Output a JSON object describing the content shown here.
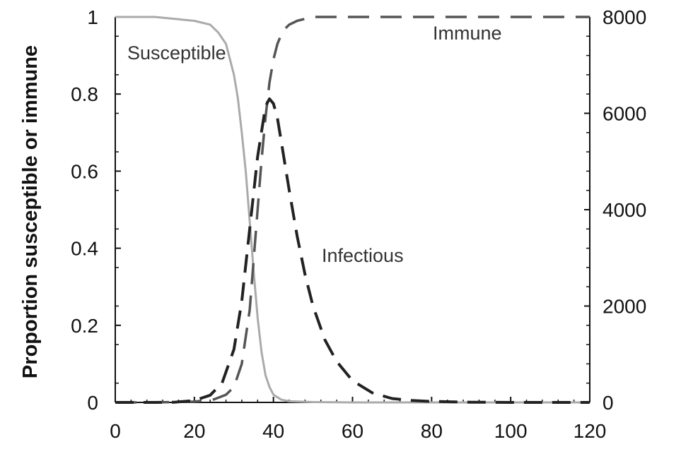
{
  "chart_data": {
    "type": "line",
    "title": "",
    "ylabel": "Proportion susceptible or immune",
    "xlabel": "",
    "xlim": [
      0,
      120
    ],
    "ylim": [
      0,
      1
    ],
    "y2lim": [
      0,
      8000
    ],
    "grid": false,
    "legend": "none",
    "x_ticks": [
      "0",
      "20",
      "40",
      "60",
      "80",
      "100",
      "120"
    ],
    "y_ticks": [
      "0",
      "0.2",
      "0.4",
      "0.6",
      "0.8",
      "1"
    ],
    "y2_ticks": [
      "0",
      "2000",
      "4000",
      "6000",
      "8000"
    ],
    "series": [
      {
        "name": "Susceptible",
        "axis": "left",
        "color": "#aaaaaa",
        "style": "solid",
        "x": [
          0,
          10,
          20,
          24,
          26,
          28,
          30,
          31,
          32,
          33,
          34,
          35,
          36,
          37,
          38,
          39,
          40,
          42,
          44,
          50,
          60,
          80,
          100,
          120
        ],
        "y": [
          1.0,
          1.0,
          0.99,
          0.98,
          0.96,
          0.93,
          0.85,
          0.79,
          0.7,
          0.6,
          0.47,
          0.34,
          0.22,
          0.13,
          0.07,
          0.04,
          0.02,
          0.007,
          0.003,
          0.001,
          0.0,
          0.0,
          0.0,
          0.0
        ]
      },
      {
        "name": "Immune",
        "axis": "left",
        "color": "#555555",
        "style": "dashed",
        "x": [
          0,
          10,
          20,
          25,
          28,
          30,
          32,
          34,
          35,
          36,
          37,
          38,
          39,
          40,
          41,
          42,
          43,
          44,
          46,
          48,
          50,
          60,
          80,
          100,
          120
        ],
        "y": [
          0.0,
          0.0,
          0.002,
          0.008,
          0.02,
          0.04,
          0.1,
          0.24,
          0.37,
          0.5,
          0.63,
          0.74,
          0.83,
          0.89,
          0.93,
          0.955,
          0.97,
          0.98,
          0.99,
          0.995,
          1.0,
          1.0,
          1.0,
          1.0,
          1.0
        ]
      },
      {
        "name": "Infectious",
        "axis": "right",
        "color": "#222222",
        "style": "dashed",
        "x": [
          0,
          10,
          15,
          20,
          24,
          27,
          30,
          32,
          34,
          36,
          38,
          39,
          40,
          41,
          42,
          44,
          46,
          48,
          50,
          53,
          56,
          60,
          65,
          70,
          75,
          80,
          90,
          100,
          120
        ],
        "y": [
          0,
          0,
          5,
          40,
          150,
          400,
          1100,
          2100,
          3600,
          5100,
          6150,
          6300,
          6200,
          5900,
          5400,
          4400,
          3450,
          2650,
          2000,
          1300,
          850,
          450,
          200,
          80,
          40,
          20,
          5,
          0,
          0
        ]
      }
    ]
  }
}
